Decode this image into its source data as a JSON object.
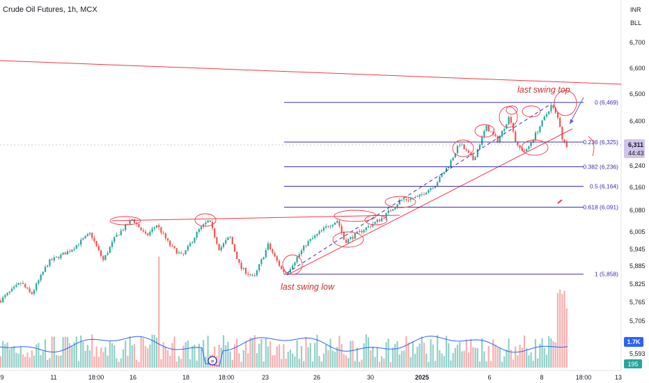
{
  "chart_data": {
    "type": "candlestick",
    "title": "Crude Oil Futures, 1h, MCX",
    "currency_buttons": [
      "INR",
      "BLL"
    ],
    "price_ticks": [
      6700,
      6600,
      6500,
      6400,
      6311,
      6240,
      6160,
      6080,
      6005,
      5945,
      5885,
      5825,
      5765,
      5705,
      5593
    ],
    "x_tick_labels": [
      "9",
      "11",
      "18:00",
      "16",
      "18",
      "18:00",
      "23",
      "26",
      "30",
      "2025",
      "6",
      "8",
      "18:00",
      "13"
    ],
    "last_price": {
      "value": "6,311",
      "countdown": "44:43"
    },
    "volume_labels": {
      "ma": "1.7K",
      "last": "195"
    },
    "fibonacci": [
      {
        "label": "0 (6,469)",
        "level": 6469
      },
      {
        "label": "0.236 (6,325)",
        "level": 6325
      },
      {
        "label": "0.382 (6,236)",
        "level": 6236
      },
      {
        "label": "0.5 (6,164)",
        "level": 6164
      },
      {
        "label": "0.618 (6,091)",
        "level": 6091
      },
      {
        "label": "1 (5,858)",
        "level": 5858
      }
    ],
    "annotations": [
      "last swing top",
      "last swing low"
    ],
    "colors": {
      "up": "#26a69a",
      "down": "#ef5350",
      "fib": "#3b2cb0",
      "trend": "#f23645",
      "volume_ma": "#2962ff"
    }
  }
}
